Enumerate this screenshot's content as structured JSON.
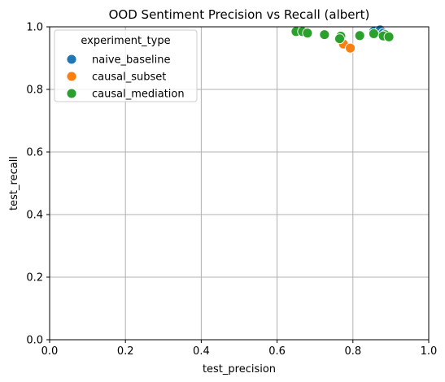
{
  "chart_data": {
    "type": "scatter",
    "title": "OOD Sentiment Precision vs Recall (albert)",
    "xlabel": "test_precision",
    "ylabel": "test_recall",
    "xlim": [
      0.0,
      1.0
    ],
    "ylim": [
      0.0,
      1.0
    ],
    "xticks": [
      "0.0",
      "0.2",
      "0.4",
      "0.6",
      "0.8",
      "1.0"
    ],
    "yticks": [
      "0.0",
      "0.2",
      "0.4",
      "0.6",
      "0.8",
      "1.0"
    ],
    "grid": true,
    "legend": {
      "title": "experiment_type",
      "placement": "upper-left"
    },
    "series": [
      {
        "name": "naive_baseline",
        "color": "#1f77b4",
        "points": [
          {
            "x": 0.855,
            "y": 0.985
          },
          {
            "x": 0.872,
            "y": 0.99
          },
          {
            "x": 0.88,
            "y": 0.98
          },
          {
            "x": 0.89,
            "y": 0.97
          }
        ]
      },
      {
        "name": "causal_subset",
        "color": "#ff7f0e",
        "points": [
          {
            "x": 0.775,
            "y": 0.945
          },
          {
            "x": 0.793,
            "y": 0.932
          }
        ]
      },
      {
        "name": "causal_mediation",
        "color": "#2ca02c",
        "points": [
          {
            "x": 0.65,
            "y": 0.985
          },
          {
            "x": 0.667,
            "y": 0.985
          },
          {
            "x": 0.68,
            "y": 0.98
          },
          {
            "x": 0.725,
            "y": 0.975
          },
          {
            "x": 0.768,
            "y": 0.97
          },
          {
            "x": 0.765,
            "y": 0.962
          },
          {
            "x": 0.818,
            "y": 0.972
          },
          {
            "x": 0.855,
            "y": 0.978
          },
          {
            "x": 0.885,
            "y": 0.975
          },
          {
            "x": 0.88,
            "y": 0.971
          },
          {
            "x": 0.895,
            "y": 0.968
          }
        ]
      }
    ]
  }
}
